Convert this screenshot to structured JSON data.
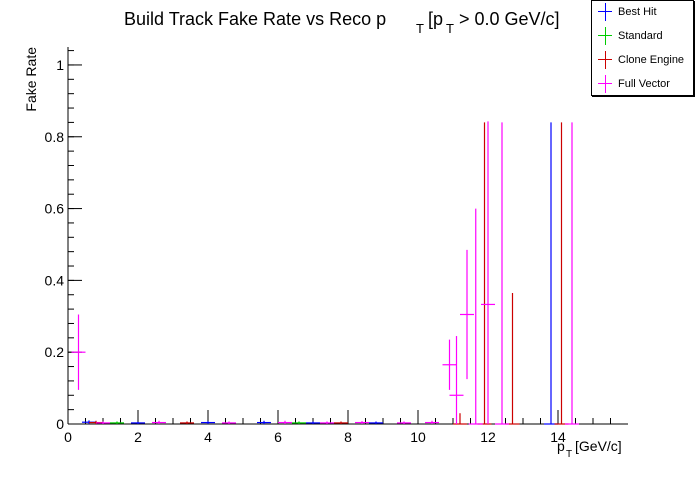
{
  "chart_data": {
    "type": "scatter",
    "title_main": "Build Track Fake Rate vs Reco p",
    "title_sub": "T",
    "title_rest": "[p",
    "title_sub2": "T",
    "title_end": "> 0.0 GeV/c]",
    "ylabel": "Fake Rate",
    "xlabel_main": "p",
    "xlabel_sub": "T",
    "xlabel_rest": "[GeV/c]",
    "xlim": [
      0,
      16
    ],
    "ylim": [
      0,
      1.05
    ],
    "x_ticks": [
      "0",
      "2",
      "4",
      "6",
      "8",
      "10",
      "12",
      "14"
    ],
    "y_ticks": [
      "0",
      "0.2",
      "0.4",
      "0.6",
      "0.8",
      "1"
    ],
    "legend_position": "top-right",
    "series": [
      {
        "name": "Best Hit",
        "color": "#0000ff",
        "points": [
          {
            "x": 0.6,
            "y": 0.005,
            "err": 0.005
          },
          {
            "x": 2.0,
            "y": 0.003,
            "err": 0.003
          },
          {
            "x": 4.0,
            "y": 0.004,
            "err": 0.004
          },
          {
            "x": 5.6,
            "y": 0.004,
            "err": 0.005
          },
          {
            "x": 7.0,
            "y": 0.003,
            "err": 0.004
          },
          {
            "x": 8.8,
            "y": 0.003,
            "err": 0.004
          },
          {
            "x": 13.8,
            "y": 0,
            "err": 0.84
          }
        ]
      },
      {
        "name": "Standard",
        "color": "#00cc00",
        "points": [
          {
            "x": 1.4,
            "y": 0.003,
            "err": 0.004
          },
          {
            "x": 6.6,
            "y": 0.003,
            "err": 0.004
          }
        ]
      },
      {
        "name": "Clone Engine",
        "color": "#cc0000",
        "points": [
          {
            "x": 0.8,
            "y": 0.004,
            "err": 0.005
          },
          {
            "x": 3.4,
            "y": 0.003,
            "err": 0.004
          },
          {
            "x": 7.8,
            "y": 0.003,
            "err": 0.004
          },
          {
            "x": 11.2,
            "y": 0,
            "err": 0.03
          },
          {
            "x": 11.9,
            "y": 0,
            "err": 0.84
          },
          {
            "x": 12.7,
            "y": 0,
            "err": 0.365
          },
          {
            "x": 14.1,
            "y": 0,
            "err": 0.84
          }
        ]
      },
      {
        "name": "Full Vector",
        "color": "#ff00ff",
        "points": [
          {
            "x": 0.3,
            "y": 0.2,
            "err": 0.105
          },
          {
            "x": 1.0,
            "y": 0.003,
            "err": 0.004
          },
          {
            "x": 2.6,
            "y": 0.004,
            "err": 0.005
          },
          {
            "x": 4.6,
            "y": 0.003,
            "err": 0.004
          },
          {
            "x": 6.2,
            "y": 0.004,
            "err": 0.005
          },
          {
            "x": 7.4,
            "y": 0.003,
            "err": 0.004
          },
          {
            "x": 8.4,
            "y": 0.004,
            "err": 0.004
          },
          {
            "x": 9.6,
            "y": 0.003,
            "err": 0.004
          },
          {
            "x": 10.4,
            "y": 0.004,
            "err": 0.005
          },
          {
            "x": 10.9,
            "y": 0.165,
            "err": 0.07
          },
          {
            "x": 11.1,
            "y": 0.08,
            "err": 0.165
          },
          {
            "x": 11.4,
            "y": 0.305,
            "err": 0.18
          },
          {
            "x": 11.65,
            "y": 0,
            "err": 0.6
          },
          {
            "x": 12.0,
            "y": 0.333,
            "err": 0.51
          },
          {
            "x": 12.4,
            "y": 0,
            "err": 0.84
          },
          {
            "x": 14.4,
            "y": 0,
            "err": 0.84
          }
        ]
      }
    ]
  }
}
